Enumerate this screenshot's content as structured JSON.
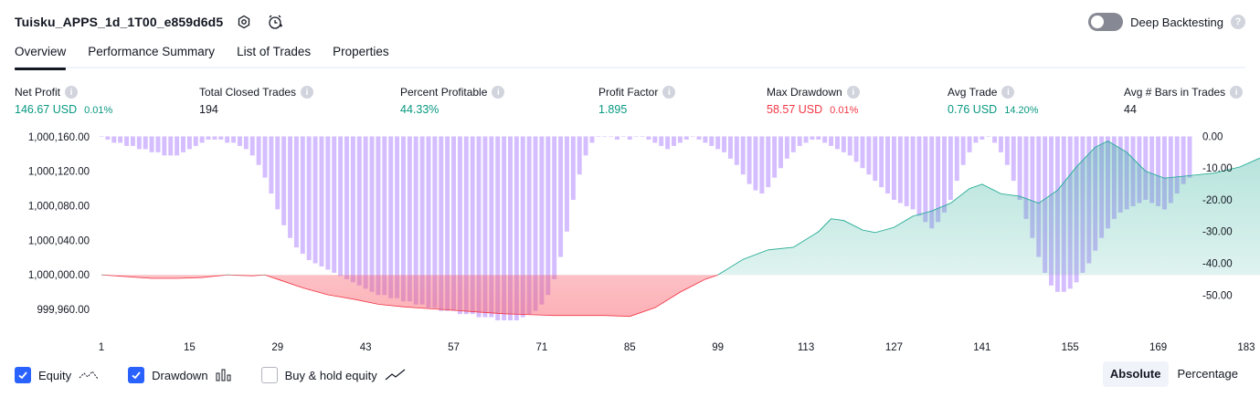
{
  "header": {
    "strategy_name": "Tuisku_APPS_1d_1T00_e859d6d5"
  },
  "deep_backtesting": {
    "label": "Deep Backtesting",
    "enabled": false
  },
  "tabs": [
    {
      "label": "Overview",
      "active": true
    },
    {
      "label": "Performance Summary",
      "active": false
    },
    {
      "label": "List of Trades",
      "active": false
    },
    {
      "label": "Properties",
      "active": false
    }
  ],
  "stats": [
    {
      "label": "Net Profit",
      "value": "146.67 USD",
      "pct": "0.01%",
      "color": "#089981"
    },
    {
      "label": "Total Closed Trades",
      "value": "194",
      "pct": "",
      "color": "#131722"
    },
    {
      "label": "Percent Profitable",
      "value": "44.33%",
      "pct": "",
      "color": "#089981"
    },
    {
      "label": "Profit Factor",
      "value": "1.895",
      "pct": "",
      "color": "#089981"
    },
    {
      "label": "Max Drawdown",
      "value": "58.57 USD",
      "pct": "0.01%",
      "color": "#f23645"
    },
    {
      "label": "Avg Trade",
      "value": "0.76 USD",
      "pct": "14.20%",
      "color": "#089981"
    },
    {
      "label": "Avg # Bars in Trades",
      "value": "44",
      "pct": "",
      "color": "#131722"
    }
  ],
  "chart_data": {
    "type": "area",
    "x_ticks": [
      "1",
      "15",
      "29",
      "43",
      "57",
      "71",
      "85",
      "99",
      "113",
      "127",
      "141",
      "155",
      "169",
      "183"
    ],
    "y_left_ticks": [
      "1,000,160.00",
      "1,000,120.00",
      "1,000,080.00",
      "1,000,040.00",
      "1,000,000.00",
      "999,960.00"
    ],
    "y_right_ticks": [
      "0.00",
      "-10.00",
      "-20.00",
      "-30.00",
      "-40.00",
      "-50.00"
    ],
    "ylim_left": [
      999940,
      1000164
    ],
    "ylim_right": [
      -60,
      1
    ],
    "baseline": 1000000,
    "equity_series": {
      "name": "Equity",
      "points": [
        [
          1,
          1000000
        ],
        [
          5,
          999998
        ],
        [
          9,
          999996
        ],
        [
          13,
          999996
        ],
        [
          17,
          999997
        ],
        [
          21,
          1000000
        ],
        [
          25,
          999999
        ],
        [
          27,
          1000000
        ],
        [
          29,
          999995
        ],
        [
          33,
          999985
        ],
        [
          37,
          999977
        ],
        [
          41,
          999972
        ],
        [
          45,
          999966
        ],
        [
          49,
          999963
        ],
        [
          53,
          999961
        ],
        [
          57,
          999959
        ],
        [
          61,
          999957
        ],
        [
          65,
          999955
        ],
        [
          69,
          999954
        ],
        [
          73,
          999953
        ],
        [
          77,
          999953
        ],
        [
          81,
          999953
        ],
        [
          85,
          999952
        ],
        [
          89,
          999962
        ],
        [
          93,
          999980
        ],
        [
          97,
          999995
        ],
        [
          99,
          1000000
        ],
        [
          103,
          1000018
        ],
        [
          107,
          1000029
        ],
        [
          111,
          1000032
        ],
        [
          115,
          1000050
        ],
        [
          117,
          1000065
        ],
        [
          119,
          1000063
        ],
        [
          122,
          1000052
        ],
        [
          124,
          1000049
        ],
        [
          127,
          1000055
        ],
        [
          130,
          1000068
        ],
        [
          133,
          1000074
        ],
        [
          136,
          1000083
        ],
        [
          139,
          1000100
        ],
        [
          141,
          1000105
        ],
        [
          144,
          1000094
        ],
        [
          147,
          1000091
        ],
        [
          150,
          1000083
        ],
        [
          153,
          1000098
        ],
        [
          156,
          1000125
        ],
        [
          159,
          1000148
        ],
        [
          161,
          1000155
        ],
        [
          164,
          1000142
        ],
        [
          167,
          1000120
        ],
        [
          170,
          1000112
        ],
        [
          174,
          1000115
        ],
        [
          178,
          1000118
        ],
        [
          182,
          1000125
        ],
        [
          186,
          1000138
        ],
        [
          190,
          1000140
        ],
        [
          194,
          1000148
        ]
      ]
    },
    "drawdown_series": {
      "name": "Drawdown",
      "values": [
        0,
        -1,
        -2,
        -2,
        -3,
        -3,
        -4,
        -4,
        -5,
        -5,
        -6,
        -6,
        -6,
        -5,
        -4,
        -3,
        -2,
        -1,
        -1,
        -1,
        -2,
        -2,
        -3,
        -4,
        -6,
        -9,
        -13,
        -18,
        -23,
        -28,
        -32,
        -35,
        -37,
        -39,
        -40,
        -41,
        -42,
        -43,
        -44,
        -45,
        -46,
        -47,
        -48,
        -49,
        -50,
        -50,
        -51,
        -51,
        -52,
        -52,
        -53,
        -53,
        -54,
        -54,
        -55,
        -55,
        -55,
        -56,
        -56,
        -56,
        -57,
        -57,
        -57,
        -58,
        -58,
        -58,
        -58,
        -57,
        -56,
        -55,
        -53,
        -50,
        -45,
        -38,
        -30,
        -20,
        -12,
        -6,
        -2,
        0,
        0,
        0,
        -1,
        0,
        -1,
        0,
        0,
        -1,
        -2,
        -3,
        -4,
        -3,
        -2,
        -1,
        0,
        -1,
        -2,
        -3,
        -4,
        -5,
        -7,
        -9,
        -12,
        -15,
        -17,
        -18,
        -16,
        -13,
        -10,
        -7,
        -5,
        -3,
        -2,
        -1,
        -1,
        -2,
        -3,
        -4,
        -5,
        -6,
        -8,
        -10,
        -12,
        -14,
        -16,
        -18,
        -20,
        -21,
        -22,
        -23,
        -25,
        -27,
        -29,
        -27,
        -24,
        -20,
        -14,
        -9,
        -5,
        -2,
        -1,
        0,
        -2,
        -5,
        -9,
        -14,
        -20,
        -26,
        -32,
        -38,
        -43,
        -47,
        -49,
        -49,
        -48,
        -46,
        -43,
        -40,
        -36,
        -32,
        -29,
        -26,
        -24,
        -23,
        -22,
        -21,
        -20,
        -21,
        -22,
        -23,
        -21,
        -18,
        -15,
        -13
      ]
    },
    "buy_hold_visible": false
  },
  "controls": [
    {
      "label": "Equity",
      "checked": true,
      "icon": "equity-line-icon"
    },
    {
      "label": "Drawdown",
      "checked": true,
      "icon": "drawdown-bars-icon"
    },
    {
      "label": "Buy & hold equity",
      "checked": false,
      "icon": "buy-hold-line-icon"
    }
  ],
  "scale_mode": {
    "options": [
      "Absolute",
      "Percentage"
    ],
    "active": "Absolute"
  }
}
